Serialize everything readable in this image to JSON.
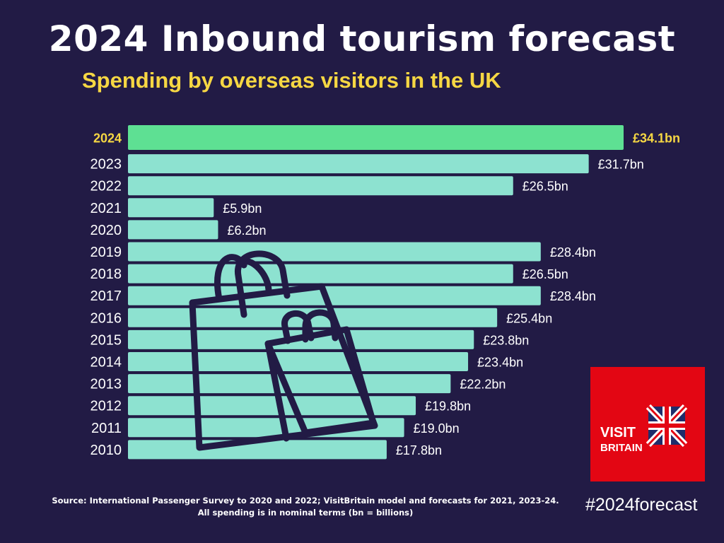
{
  "header": {
    "title": "2024 Inbound tourism forecast",
    "subtitle": "Spending by overseas visitors in the UK"
  },
  "footer": {
    "source_line1": "Source: International Passenger Survey to 2020 and 2022; VisitBritain model and forecasts for 2021, 2023-24.",
    "source_line2": "All spending is in nominal terms (bn = billions)",
    "hashtag": "#2024forecast"
  },
  "logo": {
    "line1": "VISIT",
    "line2": "BRITAIN"
  },
  "colors": {
    "background": "#221b45",
    "bar": "#8de2d0",
    "highlight_bar": "#5ee093",
    "highlight_text": "#f6d743",
    "logo": "#e30613"
  },
  "icons": [
    "shopping-bags-icon",
    "union-jack-icon"
  ],
  "chart_data": {
    "type": "bar",
    "orientation": "horizontal",
    "categories": [
      "2024",
      "2023",
      "2022",
      "2021",
      "2020",
      "2019",
      "2018",
      "2017",
      "2016",
      "2015",
      "2014",
      "2013",
      "2012",
      "2011",
      "2010"
    ],
    "values": [
      34.1,
      31.7,
      26.5,
      5.9,
      6.2,
      28.4,
      26.5,
      28.4,
      25.4,
      23.8,
      23.4,
      22.2,
      19.8,
      19.0,
      17.8
    ],
    "labels": [
      "£34.1bn",
      "£31.7bn",
      "£26.5bn",
      "£5.9bn",
      "£6.2bn",
      "£28.4bn",
      "£26.5bn",
      "£28.4bn",
      "£25.4bn",
      "£23.8bn",
      "£23.4bn",
      "£22.2bn",
      "£19.8bn",
      "£19.0bn",
      "£17.8bn"
    ],
    "highlight": "2024",
    "xlim": [
      0,
      34.1
    ],
    "grid": false,
    "legend": "none"
  }
}
